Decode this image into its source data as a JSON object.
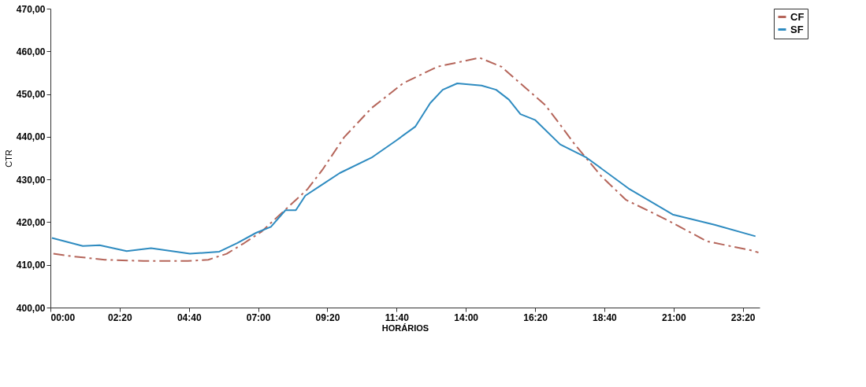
{
  "chart_data": {
    "type": "line",
    "xlabel": "HORÁRIOS",
    "ylabel": "CTR",
    "xlim": [
      0,
      23.9
    ],
    "ylim": [
      400,
      470
    ],
    "xticks": [
      {
        "value": 0,
        "label": "00:00"
      },
      {
        "value": 2.3333,
        "label": "02:20"
      },
      {
        "value": 4.6667,
        "label": "04:40"
      },
      {
        "value": 7,
        "label": "07:00"
      },
      {
        "value": 9.3333,
        "label": "09:20"
      },
      {
        "value": 11.6667,
        "label": "11:40"
      },
      {
        "value": 14,
        "label": "14:00"
      },
      {
        "value": 16.3333,
        "label": "16:20"
      },
      {
        "value": 18.6667,
        "label": "18:40"
      },
      {
        "value": 21,
        "label": "21:00"
      },
      {
        "value": 23.3333,
        "label": "23:20"
      }
    ],
    "yticks": [
      {
        "value": 400,
        "label": "400,00"
      },
      {
        "value": 410,
        "label": "410,00"
      },
      {
        "value": 420,
        "label": "420,00"
      },
      {
        "value": 430,
        "label": "430,00"
      },
      {
        "value": 440,
        "label": "440,00"
      },
      {
        "value": 450,
        "label": "450,00"
      },
      {
        "value": 460,
        "label": "460,00"
      },
      {
        "value": 470,
        "label": "470,00"
      }
    ],
    "grid": false,
    "legend": "right",
    "marker": "none",
    "series": [
      {
        "name": "CF",
        "color": "#b5655a",
        "line_style": "dashed",
        "x": [
          0.1,
          0.74,
          1.83,
          3.14,
          4.63,
          5.32,
          5.94,
          6.53,
          7.1,
          8.27,
          8.66,
          9.16,
          9.9,
          10.82,
          11.88,
          13.04,
          14.46,
          15.2,
          15.84,
          16.68,
          17.18,
          17.67,
          18.56,
          19.4,
          20.2,
          20.89,
          22.13,
          23.61,
          23.86
        ],
        "values": [
          412.6,
          412.0,
          411.2,
          410.9,
          410.9,
          411.2,
          412.6,
          415.1,
          417.7,
          425.2,
          427.7,
          432.2,
          439.9,
          446.7,
          452.5,
          456.4,
          458.5,
          456.4,
          452.5,
          447.4,
          442.8,
          438.2,
          430.8,
          425.2,
          422.5,
          420.1,
          415.5,
          413.4,
          412.9
        ]
      },
      {
        "name": "SF",
        "color": "#2e8bc0",
        "line_style": "solid",
        "x": [
          0.05,
          1.09,
          1.66,
          2.57,
          3.39,
          4.7,
          5.69,
          6.29,
          6.93,
          7.43,
          7.92,
          8.27,
          8.59,
          9.16,
          9.75,
          10.82,
          11.63,
          12.3,
          12.8,
          13.22,
          13.71,
          14.53,
          15.02,
          15.45,
          15.84,
          16.34,
          17.18,
          18.07,
          19.48,
          20.97,
          22.38,
          23.76
        ],
        "values": [
          416.3,
          414.4,
          414.6,
          413.2,
          413.9,
          412.6,
          413.1,
          415.1,
          417.5,
          418.9,
          422.8,
          422.8,
          426.2,
          428.8,
          431.5,
          435.1,
          439.0,
          442.4,
          447.9,
          451.0,
          452.5,
          452.0,
          451.0,
          448.7,
          445.3,
          443.9,
          438.2,
          435.1,
          427.9,
          421.8,
          419.4,
          416.7
        ]
      }
    ]
  }
}
